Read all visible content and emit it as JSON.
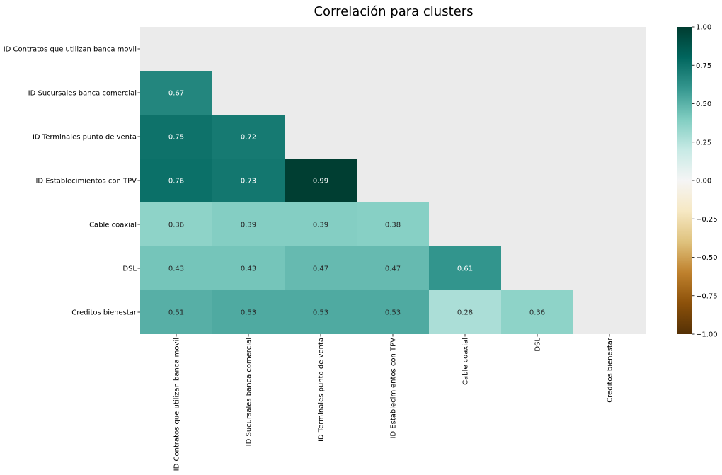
{
  "chart_data": {
    "type": "heatmap",
    "title": "Correlación para clusters",
    "labels": [
      "ID Contratos que utilizan banca movil",
      "ID Sucursales banca comercial",
      "ID Terminales punto de venta",
      "ID Establecimientos con TPV",
      "Cable coaxial",
      "DSL",
      "Creditos bienestar"
    ],
    "matrix": [
      [
        null,
        null,
        null,
        null,
        null,
        null,
        null
      ],
      [
        0.67,
        null,
        null,
        null,
        null,
        null,
        null
      ],
      [
        0.75,
        0.72,
        null,
        null,
        null,
        null,
        null
      ],
      [
        0.76,
        0.73,
        0.99,
        null,
        null,
        null,
        null
      ],
      [
        0.36,
        0.39,
        0.39,
        0.38,
        null,
        null,
        null
      ],
      [
        0.43,
        0.43,
        0.47,
        0.47,
        0.61,
        null,
        null
      ],
      [
        0.51,
        0.53,
        0.53,
        0.53,
        0.28,
        0.36,
        null
      ]
    ],
    "masked": "upper triangle including diagonal",
    "colormap": "BrBG",
    "vlim": [
      -1.0,
      1.0
    ],
    "colorbar_ticks": [
      "1.00",
      "0.75",
      "0.50",
      "0.25",
      "0.00",
      "−0.25",
      "−0.50",
      "−0.75",
      "−1.00"
    ],
    "colorbar_tick_values": [
      1.0,
      0.75,
      0.5,
      0.25,
      0.0,
      -0.25,
      -0.5,
      -0.75,
      -1.0
    ],
    "colors": {
      "background": "#ebebeb",
      "colormap_stops": [
        "#543005",
        "#8c510a",
        "#bf812d",
        "#dfc27d",
        "#f6e8c3",
        "#f5f5f5",
        "#c7eae5",
        "#80cdc1",
        "#35978f",
        "#01665e",
        "#003c30"
      ]
    }
  }
}
